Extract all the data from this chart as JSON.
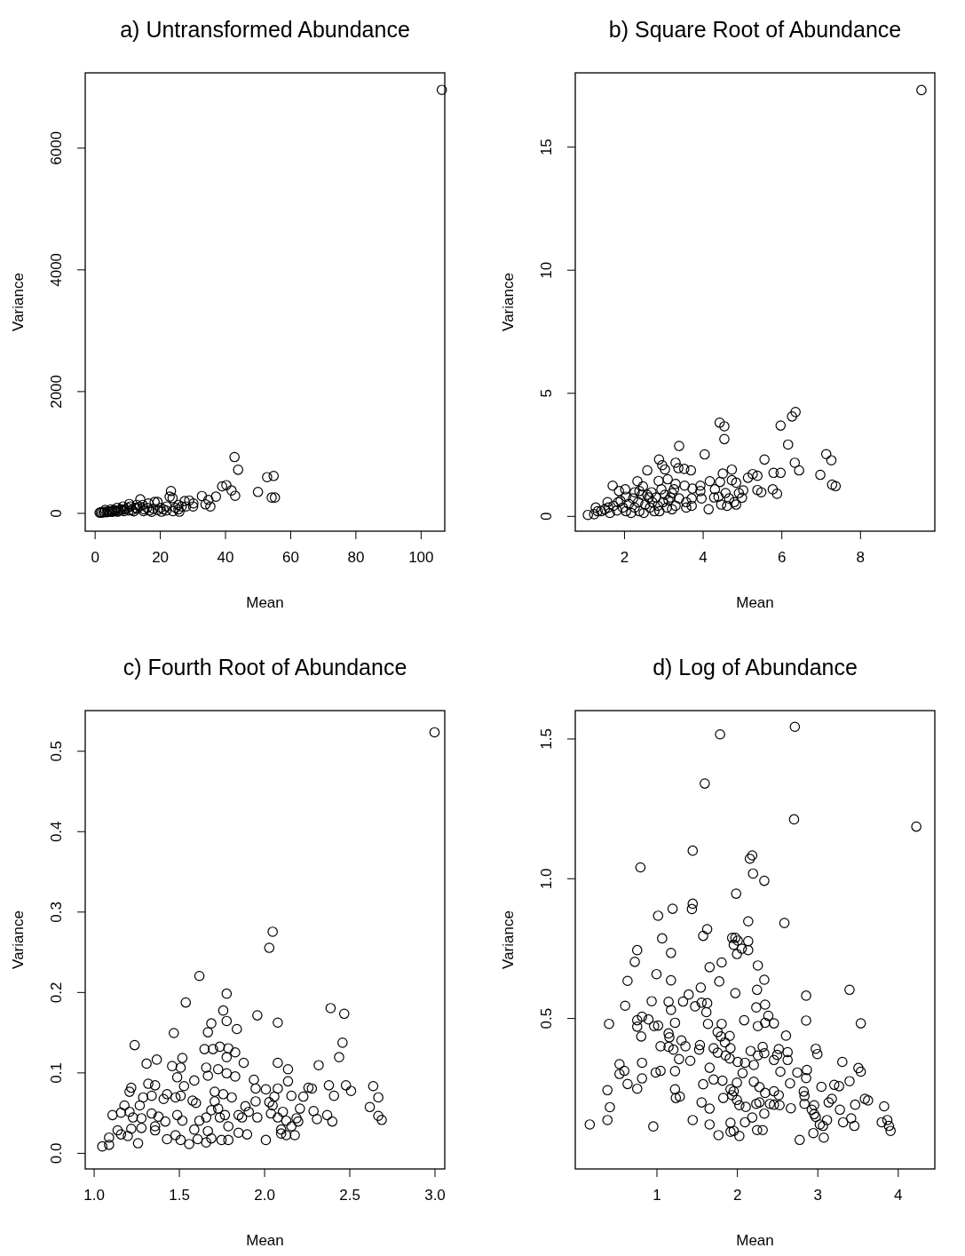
{
  "chart_data": [
    {
      "type": "scatter",
      "title": "a) Untransformed Abundance",
      "xlabel": "Mean",
      "ylabel": "Variance",
      "marker": "circle",
      "xlim": [
        -2.9,
        107.4
      ],
      "ylim": [
        -300,
        7230
      ],
      "xticks": [
        0,
        20,
        40,
        60,
        80,
        100
      ],
      "yticks": [
        0,
        2000,
        4000,
        6000
      ],
      "series": [
        {
          "color": "#000000",
          "x": [
            106.5,
            42.9,
            44.0,
            39.1,
            40.4,
            42.0,
            43.1,
            50.1,
            52.9,
            54.9,
            54.3,
            55.3,
            32.9,
            37.2,
            34.9,
            34.0,
            35.5,
            27.6,
            29.0,
            30.3,
            30.2,
            23.4,
            23.0,
            23.9,
            14.0,
            18.4,
            10.6,
            16.5,
            17.5,
            26.7,
            25.7,
            24.8,
            22.1,
            21.1,
            20.2,
            19.3,
            16.1,
            15.2,
            13.8,
            12.4,
            11.5,
            10.1,
            9.2,
            8.3,
            7.3,
            6.4,
            5.5,
            4.6,
            3.7,
            2.8,
            1.8,
            1.5,
            14.7,
            12.9,
            11.0,
            8.7,
            6.9,
            5.0,
            3.2,
            19.3,
            25.7,
            28.0,
            2.2,
            3.0,
            4.1,
            5.2,
            6.0,
            7.0,
            8.0,
            9.0,
            10.5,
            12.0,
            13.0,
            15.0,
            16.8,
            18.0,
            20.5,
            22.0,
            24.0,
            26.0
          ],
          "values": [
            6950,
            918,
            709,
            437,
            456,
            369,
            281,
            345,
            587,
            608,
            252,
            252,
            277,
            267,
            214,
            141,
            106,
            194,
            204,
            156,
            106,
            360,
            267,
            243,
            223,
            179,
            146,
            156,
            19,
            106,
            58,
            83,
            106,
            58,
            83,
            48,
            83,
            58,
            106,
            83,
            48,
            83,
            58,
            48,
            34,
            34,
            19,
            19,
            10,
            10,
            10,
            3,
            131,
            131,
            106,
            106,
            83,
            58,
            48,
            179,
            131,
            106,
            5,
            15,
            25,
            30,
            45,
            20,
            60,
            30,
            40,
            25,
            70,
            30,
            40,
            70,
            20,
            40,
            30,
            20
          ]
        }
      ]
    },
    {
      "type": "scatter",
      "title": "b) Square Root of Abundance",
      "xlabel": "Mean",
      "ylabel": "Variance",
      "marker": "circle",
      "xlim": [
        0.76,
        9.9
      ],
      "ylim": [
        -0.62,
        18.0
      ],
      "xticks": [
        2,
        4,
        6,
        8
      ],
      "yticks": [
        0,
        5,
        10,
        15
      ],
      "series": [
        {
          "color": "#000000",
          "x": [
            9.56,
            6.36,
            6.27,
            5.98,
            6.17,
            6.34,
            6.45,
            7.14,
            7.27,
            6.99,
            7.29,
            7.38,
            5.57,
            5.8,
            5.98,
            5.78,
            5.89,
            5.39,
            5.27,
            5.15,
            5.39,
            5.49,
            4.43,
            4.55,
            4.55,
            4.05,
            3.4,
            2.89,
            2.97,
            3.04,
            2.59,
            3.31,
            3.38,
            3.53,
            3.7,
            1.71,
            1.87,
            2.03,
            2.34,
            2.48,
            2.88,
            3.11,
            4.51,
            4.74,
            4.74,
            4.85,
            4.18,
            4.15,
            3.94,
            3.94,
            3.97,
            3.74,
            3.72,
            4.44,
            4.31,
            4.4,
            4.29,
            4.58,
            4.67,
            4.47,
            4.62,
            4.8,
            4.85,
            5.03,
            4.92,
            5.0,
            3.31,
            3.54,
            3.22,
            2.95,
            3.04,
            3.4,
            3.58,
            3.31,
            3.13,
            3.22,
            3.72,
            3.58,
            1.08,
            1.24,
            1.28,
            1.42,
            1.51,
            1.58,
            1.6,
            1.64,
            1.73,
            1.82,
            1.91,
            1.97,
            2.05,
            2.12,
            2.18,
            2.23,
            2.27,
            2.36,
            2.39,
            2.45,
            2.5,
            2.54,
            2.63,
            2.66,
            2.72,
            2.77,
            2.81,
            2.86,
            2.9,
            2.99,
            3.09,
            3.18,
            3.27,
            2.39,
            2.27,
            2.05,
            1.85,
            1.33,
            2.59,
            2.7
          ],
          "values": [
            17.3,
            4.22,
            4.04,
            3.67,
            2.9,
            2.16,
            1.85,
            2.51,
            2.26,
            1.67,
            1.27,
            1.21,
            2.29,
            1.75,
            1.75,
            1.08,
            0.9,
            1.63,
            1.7,
            1.55,
            1.05,
            0.96,
            3.79,
            3.64,
            3.12,
            2.5,
            2.84,
            2.29,
            2.06,
            1.89,
            1.85,
            2.16,
            1.94,
            1.91,
            1.85,
            1.23,
            1.01,
            1.08,
            1.41,
            1.2,
            1.42,
            1.49,
            1.72,
            1.88,
            1.45,
            1.35,
            1.41,
            0.27,
            1.23,
            1.01,
            0.71,
            1.11,
            0.71,
            1.38,
            1.08,
            0.78,
            0.75,
            0.93,
            0.71,
            0.46,
            0.41,
            0.56,
            0.46,
            1.04,
            0.93,
            0.74,
            1.3,
            1.23,
            0.93,
            1.08,
            0.86,
            0.71,
            0.56,
            0.41,
            0.64,
            0.27,
            0.41,
            0.34,
            0.04,
            0.07,
            0.34,
            0.19,
            0.27,
            0.56,
            0.34,
            0.12,
            0.41,
            0.22,
            0.61,
            0.34,
            0.19,
            0.49,
            0.12,
            0.71,
            0.34,
            0.56,
            0.19,
            0.86,
            0.12,
            0.46,
            0.75,
            0.34,
            0.56,
            0.19,
            0.75,
            0.41,
            0.19,
            0.56,
            0.34,
            0.75,
            1.08,
            1.01,
            0.96,
            0.78,
            0.56,
            0.19,
            0.86,
            0.96
          ]
        }
      ]
    },
    {
      "type": "scatter",
      "title": "c) Fourth Root of Abundance",
      "xlabel": "Mean",
      "ylabel": "Variance",
      "marker": "circle",
      "xlim": [
        0.95,
        3.06
      ],
      "ylim": [
        -0.02,
        0.55
      ],
      "xticks": [
        {
          "value": 1,
          "label": "1.0"
        },
        1.5,
        {
          "value": 2,
          "label": "2.0"
        },
        2.5,
        {
          "value": 3,
          "label": "3.0"
        }
      ],
      "yticks": [
        {
          "value": 0,
          "label": "0.0"
        },
        0.1,
        0.2,
        0.3,
        0.4,
        0.5
      ],
      "series": [
        {
          "color": "#000000",
          "x": [
            2.05,
            2.03,
            1.62,
            1.78,
            1.54,
            1.76,
            1.69,
            1.78,
            1.67,
            1.84,
            1.96,
            2.08,
            2.39,
            2.47,
            2.46,
            2.44,
            1.47,
            1.24,
            1.31,
            1.37,
            1.46,
            1.51,
            1.52,
            1.65,
            1.7,
            1.74,
            1.79,
            1.83,
            1.78,
            1.88,
            2.08,
            2.14,
            2.32,
            1.66,
            1.67,
            1.73,
            1.78,
            1.83,
            1.49,
            1.53,
            1.59,
            1.32,
            1.36,
            1.22,
            1.21,
            2.14,
            2.38,
            2.48,
            2.51,
            2.64,
            2.67,
            2.62,
            2.67,
            2.69,
            2.26,
            2.28,
            2.41,
            2.16,
            2.23,
            2.21,
            2.29,
            2.31,
            2.37,
            2.4,
            2.08,
            2.06,
            2.03,
            2.05,
            2.01,
            1.94,
            1.95,
            1.95,
            1.96,
            2.04,
            2.08,
            2.11,
            2.13,
            2.1,
            2.16,
            2.19,
            2.2,
            2.18,
            2.13,
            2.1,
            2.01,
            1.11,
            1.18,
            1.16,
            1.21,
            1.27,
            1.29,
            1.34,
            1.41,
            1.43,
            1.48,
            1.05,
            1.09,
            1.09,
            1.26,
            1.14,
            1.16,
            1.2,
            1.22,
            1.28,
            1.36,
            1.36,
            1.23,
            1.28,
            1.34,
            1.38,
            1.42,
            1.43,
            1.51,
            1.56,
            1.61,
            1.66,
            1.48,
            1.59,
            1.67,
            1.69,
            1.75,
            1.79,
            1.85,
            1.9,
            1.49,
            1.52,
            1.58,
            1.6,
            1.62,
            1.66,
            1.69,
            1.74,
            1.77,
            1.79,
            1.85,
            1.87,
            1.91,
            1.89,
            1.81,
            1.76,
            1.71,
            1.51,
            1.71,
            1.73,
            3.0
          ],
          "values": [
            0.275,
            0.255,
            0.22,
            0.198,
            0.187,
            0.177,
            0.161,
            0.164,
            0.15,
            0.154,
            0.171,
            0.162,
            0.18,
            0.173,
            0.137,
            0.119,
            0.149,
            0.134,
            0.111,
            0.116,
            0.108,
            0.106,
            0.118,
            0.129,
            0.129,
            0.132,
            0.13,
            0.125,
            0.119,
            0.112,
            0.112,
            0.104,
            0.109,
            0.106,
            0.096,
            0.104,
            0.099,
            0.095,
            0.094,
            0.083,
            0.09,
            0.086,
            0.084,
            0.081,
            0.076,
            0.089,
            0.084,
            0.084,
            0.077,
            0.083,
            0.069,
            0.057,
            0.046,
            0.041,
            0.081,
            0.08,
            0.071,
            0.071,
            0.07,
            0.055,
            0.052,
            0.042,
            0.047,
            0.039,
            0.08,
            0.07,
            0.063,
            0.059,
            0.079,
            0.091,
            0.08,
            0.064,
            0.044,
            0.049,
            0.044,
            0.051,
            0.04,
            0.029,
            0.033,
            0.043,
            0.039,
            0.022,
            0.022,
            0.024,
            0.016,
            0.047,
            0.059,
            0.05,
            0.051,
            0.059,
            0.069,
            0.071,
            0.067,
            0.073,
            0.069,
            0.008,
            0.01,
            0.019,
            0.012,
            0.028,
            0.023,
            0.021,
            0.03,
            0.031,
            0.028,
            0.033,
            0.044,
            0.043,
            0.049,
            0.045,
            0.039,
            0.017,
            0.016,
            0.011,
            0.017,
            0.013,
            0.022,
            0.029,
            0.027,
            0.018,
            0.016,
            0.016,
            0.025,
            0.023,
            0.047,
            0.04,
            0.065,
            0.062,
            0.04,
            0.044,
            0.053,
            0.044,
            0.047,
            0.033,
            0.047,
            0.044,
            0.051,
            0.058,
            0.069,
            0.073,
            0.076,
            0.071,
            0.064,
            0.055,
            0.523
          ]
        }
      ]
    },
    {
      "type": "scatter",
      "title": "d) Log of Abundance",
      "xlabel": "Mean",
      "ylabel": "Variance",
      "marker": "circle",
      "xlim": [
        -0.01,
        4.46
      ],
      "ylim": [
        -0.04,
        1.6
      ],
      "xticks": [
        1,
        2,
        3,
        4
      ],
      "yticks": [
        0.5,
        {
          "value": 1,
          "label": "1.0"
        },
        1.5
      ],
      "series": [
        {
          "color": "#000000",
          "x": [
            2.72,
            1.79,
            1.6,
            2.71,
            4.23,
            1.45,
            0.8,
            2.19,
            2.16,
            2.2,
            2.34,
            1.99,
            1.45,
            1.44,
            1.2,
            1.02,
            2.14,
            2.59,
            1.63,
            1.58,
            1.07,
            1.94,
            1.98,
            2.01,
            1.96,
            2.06,
            2.0,
            2.14,
            2.14,
            0.76,
            0.73,
            1.18,
            2.26,
            2.34,
            1.66,
            1.81,
            0.64,
            1.0,
            1.18,
            1.78,
            2.25,
            3.4,
            2.86,
            1.55,
            1.4,
            1.98,
            0.61,
            0.94,
            1.15,
            1.18,
            1.33,
            1.48,
            1.56,
            1.63,
            1.62,
            2.24,
            2.35,
            0.41,
            0.76,
            0.82,
            0.9,
            0.76,
            0.81,
            0.97,
            1.02,
            1.23,
            1.64,
            1.81,
            2.09,
            2.26,
            2.35,
            2.39,
            2.46,
            2.86,
            3.54,
            1.15,
            1.16,
            1.31,
            1.21,
            1.05,
            1.15,
            1.36,
            1.28,
            1.42,
            1.54,
            1.53,
            1.71,
            1.76,
            1.8,
            1.85,
            1.91,
            1.76,
            1.92,
            1.86,
            1.91,
            2.01,
            2.1,
            2.21,
            2.17,
            2.26,
            2.32,
            2.34,
            2.52,
            2.5,
            2.46,
            2.63,
            2.63,
            2.61,
            2.98,
            3.0,
            3.31,
            3.51,
            3.54,
            3.4,
            3.21,
            3.05,
            2.87,
            2.86,
            2.75,
            2.54,
            2.66,
            2.46,
            2.52,
            2.53,
            2.46,
            2.41,
            2.67,
            2.83,
            2.84,
            2.84,
            2.93,
            2.96,
            1.96,
            1.92,
            1.94,
            1.83,
            1.82,
            2.0,
            2.03,
            2.11,
            2.0,
            2.07,
            2.21,
            2.28,
            2.35,
            2.24,
            2.28,
            2.34,
            2.32,
            2.25,
            2.19,
            2.1,
            1.92,
            1.92,
            1.96,
            2.03,
            1.77,
            1.66,
            1.45,
            0.96,
            0.39,
            0.17,
            0.42,
            0.39,
            0.64,
            0.76,
            0.54,
            0.6,
            0.54,
            0.82,
            0.82,
            0.99,
            1.05,
            1.23,
            1.23,
            1.24,
            1.29,
            1.56,
            1.66,
            1.58,
            1.66,
            1.71,
            3.8,
            3.83,
            3.87,
            3.89,
            3.91,
            3.59,
            3.63,
            3.47,
            3.42,
            3.32,
            3.46,
            3.14,
            3.18,
            3.27,
            3.28,
            3.12,
            3.07,
            3.08,
            3.03,
            2.98,
            2.95,
            2.96,
            2.78
          ],
          "values": [
            1.542,
            1.515,
            1.339,
            1.211,
            1.185,
            1.099,
            1.039,
            1.082,
            1.07,
            1.017,
            0.991,
            0.945,
            0.909,
            0.89,
            0.891,
            0.866,
            0.846,
            0.84,
            0.818,
            0.794,
            0.785,
            0.787,
            0.787,
            0.777,
            0.762,
            0.748,
            0.729,
            0.775,
            0.743,
            0.743,
            0.701,
            0.733,
            0.688,
            0.637,
            0.682,
            0.699,
            0.633,
            0.657,
            0.635,
            0.631,
            0.601,
            0.601,
            0.58,
            0.609,
            0.584,
            0.589,
            0.544,
            0.56,
            0.558,
            0.529,
            0.559,
            0.542,
            0.555,
            0.553,
            0.521,
            0.538,
            0.548,
            0.479,
            0.492,
            0.505,
            0.495,
            0.469,
            0.434,
            0.471,
            0.473,
            0.483,
            0.479,
            0.479,
            0.492,
            0.471,
            0.483,
            0.508,
            0.481,
            0.491,
            0.481,
            0.445,
            0.431,
            0.42,
            0.387,
            0.399,
            0.397,
            0.399,
            0.353,
            0.347,
            0.403,
            0.387,
            0.392,
            0.45,
            0.434,
            0.413,
            0.436,
            0.376,
            0.392,
            0.366,
            0.355,
            0.343,
            0.34,
            0.332,
            0.382,
            0.366,
            0.397,
            0.374,
            0.389,
            0.368,
            0.35,
            0.378,
            0.35,
            0.437,
            0.39,
            0.371,
            0.343,
            0.321,
            0.308,
            0.274,
            0.261,
            0.254,
            0.314,
            0.285,
            0.305,
            0.308,
            0.266,
            0.238,
            0.224,
            0.188,
            0.19,
            0.193,
            0.177,
            0.237,
            0.221,
            0.193,
            0.172,
            0.156,
            0.238,
            0.245,
            0.224,
            0.214,
            0.276,
            0.207,
            0.188,
            0.182,
            0.269,
            0.303,
            0.272,
            0.253,
            0.232,
            0.193,
            0.198,
            0.158,
            0.099,
            0.099,
            0.144,
            0.127,
            0.125,
            0.093,
            0.096,
            0.078,
            0.081,
            0.119,
            0.135,
            0.112,
            0.135,
            0.119,
            0.181,
            0.242,
            0.264,
            0.247,
            0.335,
            0.311,
            0.3,
            0.34,
            0.284,
            0.305,
            0.311,
            0.31,
            0.245,
            0.214,
            0.219,
            0.198,
            0.176,
            0.263,
            0.322,
            0.28,
            0.127,
            0.184,
            0.135,
            0.114,
            0.096,
            0.211,
            0.205,
            0.19,
            0.141,
            0.127,
            0.114,
            0.198,
            0.211,
            0.256,
            0.172,
            0.135,
            0.114,
            0.072,
            0.119,
            0.146,
            0.088,
            0.188,
            0.064
          ]
        }
      ]
    }
  ]
}
